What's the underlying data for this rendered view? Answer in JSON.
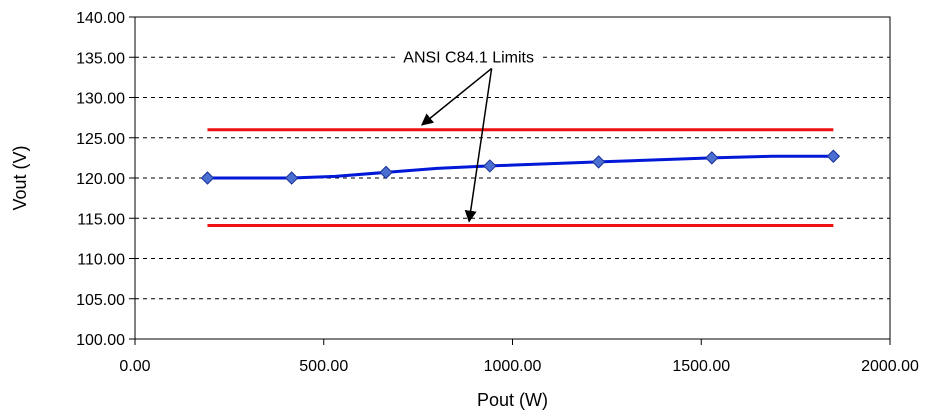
{
  "chart_data": {
    "type": "line",
    "xlabel": "Pout (W)",
    "ylabel": "Vout (V)",
    "xlim": [
      0,
      2000
    ],
    "ylim": [
      100,
      140
    ],
    "x_ticks": [
      "0.00",
      "500.00",
      "1000.00",
      "1500.00",
      "2000.00"
    ],
    "y_ticks": [
      "100.00",
      "105.00",
      "110.00",
      "115.00",
      "120.00",
      "125.00",
      "130.00",
      "135.00",
      "140.00"
    ],
    "grid": "horizontal dashed",
    "series": [
      {
        "color": "#0018d8",
        "marker_color": "#4a6fd0",
        "x": [
          192,
          415,
          665,
          940,
          1228,
          1528,
          1850
        ],
        "y": [
          120.0,
          120.0,
          120.7,
          121.5,
          122.0,
          122.5,
          122.7
        ],
        "line_x": [
          192,
          300,
          415,
          530,
          665,
          800,
          940,
          1228,
          1528,
          1690,
          1850
        ],
        "line_y": [
          120.0,
          120.0,
          120.0,
          120.2,
          120.7,
          121.2,
          121.5,
          122.0,
          122.5,
          122.7,
          122.7
        ]
      }
    ],
    "limit_lines": {
      "color": "#ee1111",
      "upper": 126.0,
      "lower": 114.1,
      "x_range": [
        192,
        1850
      ]
    },
    "annotation": {
      "text": "ANSI C84.1 Limits",
      "anchor": [
        950,
        135.1
      ],
      "arrow_targets": [
        [
          760,
          126.6
        ],
        [
          885,
          114.6
        ]
      ]
    }
  }
}
